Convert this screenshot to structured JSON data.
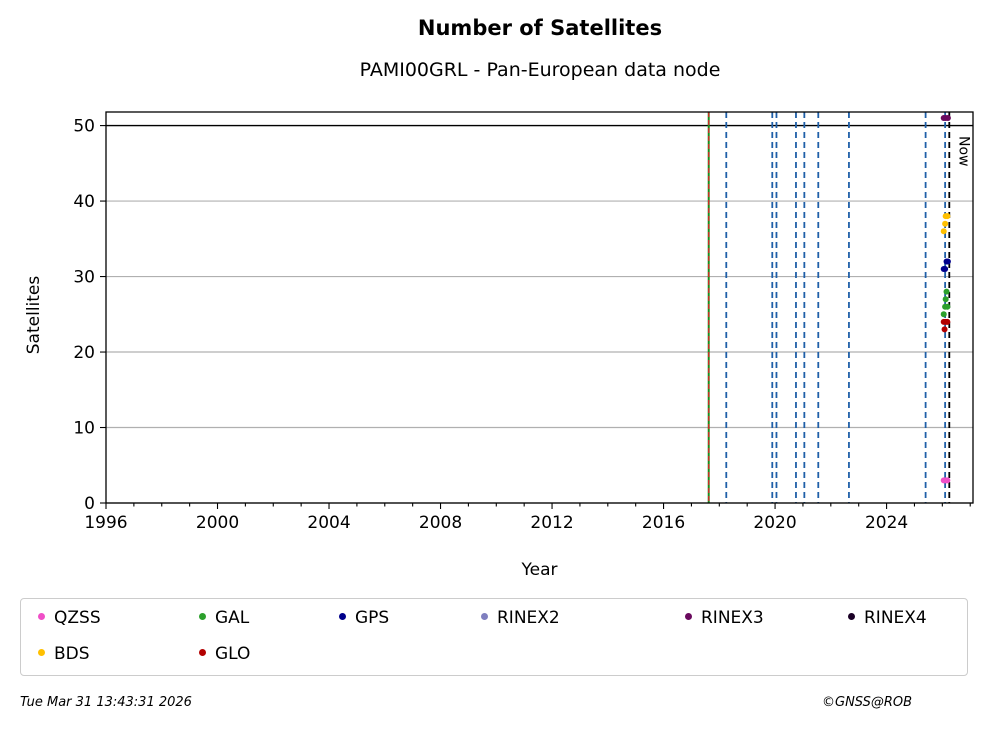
{
  "header": {
    "title": "Number of Satellites",
    "subtitle": "PAMI00GRL - Pan-European data node"
  },
  "footer": {
    "timestamp": "Tue Mar 31 13:43:31 2026",
    "credit": "©GNSS@ROB"
  },
  "chart_data": {
    "type": "scatter",
    "title": "Number of Satellites",
    "subtitle": "PAMI00GRL - Pan-European data node",
    "xlabel": "Year",
    "ylabel": "Satellites",
    "xlim": [
      1996,
      2027.1
    ],
    "ylim": [
      0,
      51.8
    ],
    "xticks": [
      1996,
      2000,
      2004,
      2008,
      2012,
      2016,
      2020,
      2024
    ],
    "xtick_labels": [
      "1996",
      "2000",
      "2004",
      "2008",
      "2012",
      "2016",
      "2020",
      "2024"
    ],
    "yticks": [
      0,
      10,
      20,
      30,
      40,
      50
    ],
    "ytick_labels": [
      "0",
      "10",
      "20",
      "30",
      "40",
      "50"
    ],
    "grid": "horizontal",
    "now_label": "Now",
    "now_x": 2026.25,
    "reference_hline": 50,
    "station_start_x": 2017.62,
    "event_lines_x": [
      2018.25,
      2019.9,
      2020.05,
      2020.75,
      2021.05,
      2021.55,
      2022.65,
      2025.4,
      2026.1
    ],
    "legend_position": "bottom",
    "series": [
      {
        "name": "QZSS",
        "color": "#f04fc7",
        "points": [
          [
            2026.05,
            3
          ],
          [
            2026.12,
            3
          ],
          [
            2026.18,
            3
          ]
        ]
      },
      {
        "name": "GAL",
        "color": "#2ca02c",
        "points": [
          [
            2026.05,
            25
          ],
          [
            2026.1,
            26
          ],
          [
            2026.12,
            27
          ],
          [
            2026.15,
            28
          ],
          [
            2026.18,
            26
          ]
        ]
      },
      {
        "name": "GPS",
        "color": "#00008b",
        "points": [
          [
            2026.05,
            31
          ],
          [
            2026.1,
            31
          ],
          [
            2026.15,
            32
          ],
          [
            2026.2,
            32
          ]
        ]
      },
      {
        "name": "RINEX2",
        "color": "#7f7fbf",
        "points": []
      },
      {
        "name": "RINEX3",
        "color": "#6a0a5e",
        "points": [
          [
            2026.05,
            51
          ],
          [
            2026.12,
            51
          ],
          [
            2026.2,
            51
          ]
        ]
      },
      {
        "name": "RINEX4",
        "color": "#1a0026",
        "points": []
      },
      {
        "name": "BDS",
        "color": "#ffc000",
        "points": [
          [
            2026.05,
            36
          ],
          [
            2026.1,
            37
          ],
          [
            2026.12,
            38
          ],
          [
            2026.18,
            38
          ]
        ]
      },
      {
        "name": "GLO",
        "color": "#b30000",
        "points": [
          [
            2026.05,
            24
          ],
          [
            2026.08,
            23
          ],
          [
            2026.12,
            24
          ],
          [
            2026.18,
            24
          ]
        ]
      }
    ]
  }
}
